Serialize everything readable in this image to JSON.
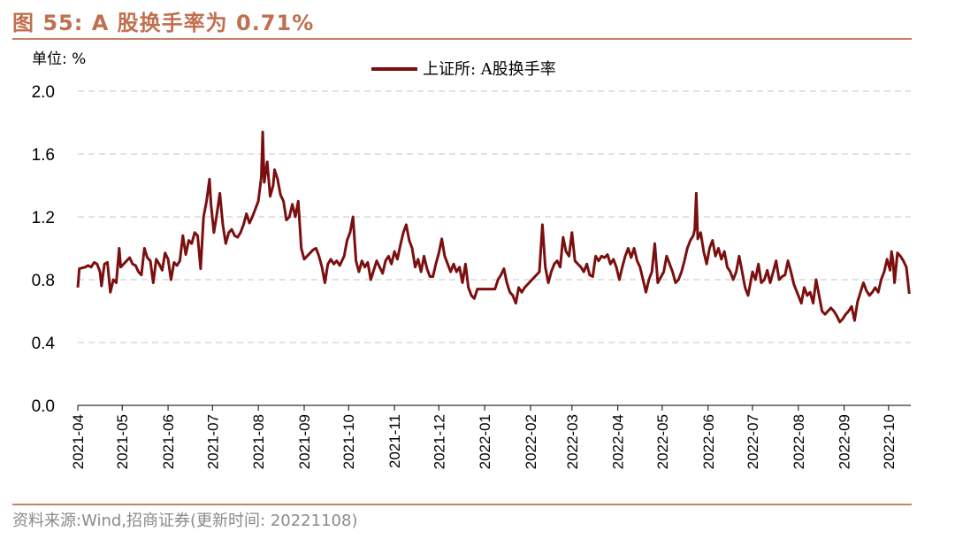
{
  "header": {
    "title": "图 55:  A 股换手率为 0.71%"
  },
  "footer": {
    "source": "资料来源:Wind,招商证券(更新时间: 20221108)"
  },
  "colors": {
    "title": "#c0704f",
    "rule": "#c58266",
    "line": "#7b0f0f",
    "grid": "#d9d9d9",
    "source": "#8a8a8a"
  },
  "chart_data": {
    "type": "line",
    "title": "",
    "unit_label": "单位: %",
    "xlabel": "",
    "ylabel": "",
    "ylim": [
      0.0,
      2.0
    ],
    "yticks": [
      "0.0",
      "0.4",
      "0.8",
      "1.2",
      "1.6",
      "2.0"
    ],
    "xticks": [
      "2021-04",
      "2021-05",
      "2021-06",
      "2021-07",
      "2021-08",
      "2021-09",
      "2021-10",
      "2021-11",
      "2021-12",
      "2022-01",
      "2022-02",
      "2022-03",
      "2022-04",
      "2022-05",
      "2022-06",
      "2022-07",
      "2022-08",
      "2022-09",
      "2022-10"
    ],
    "grid": "horizontal-dashed",
    "legend_position": "top-center",
    "series": [
      {
        "name": "上证所: A股换手率",
        "points": [
          [
            "2021-04-01",
            0.75
          ],
          [
            "2021-04-02",
            0.87
          ],
          [
            "2021-04-06",
            0.88
          ],
          [
            "2021-04-08",
            0.89
          ],
          [
            "2021-04-10",
            0.88
          ],
          [
            "2021-04-12",
            0.91
          ],
          [
            "2021-04-14",
            0.9
          ],
          [
            "2021-04-16",
            0.85
          ],
          [
            "2021-04-17",
            0.76
          ],
          [
            "2021-04-19",
            0.9
          ],
          [
            "2021-04-21",
            0.91
          ],
          [
            "2021-04-23",
            0.72
          ],
          [
            "2021-04-25",
            0.8
          ],
          [
            "2021-04-27",
            0.78
          ],
          [
            "2021-04-29",
            1.0
          ],
          [
            "2021-04-30",
            0.88
          ],
          [
            "2021-05-06",
            0.94
          ],
          [
            "2021-05-08",
            0.9
          ],
          [
            "2021-05-10",
            0.89
          ],
          [
            "2021-05-12",
            0.85
          ],
          [
            "2021-05-14",
            0.83
          ],
          [
            "2021-05-16",
            1.0
          ],
          [
            "2021-05-18",
            0.94
          ],
          [
            "2021-05-20",
            0.92
          ],
          [
            "2021-05-22",
            0.78
          ],
          [
            "2021-05-24",
            0.93
          ],
          [
            "2021-05-26",
            0.9
          ],
          [
            "2021-05-28",
            0.86
          ],
          [
            "2021-05-30",
            0.97
          ],
          [
            "2021-06-01",
            0.93
          ],
          [
            "2021-06-03",
            0.8
          ],
          [
            "2021-06-05",
            0.91
          ],
          [
            "2021-06-07",
            0.89
          ],
          [
            "2021-06-09",
            0.92
          ],
          [
            "2021-06-11",
            1.08
          ],
          [
            "2021-06-13",
            0.96
          ],
          [
            "2021-06-15",
            1.05
          ],
          [
            "2021-06-17",
            1.03
          ],
          [
            "2021-06-19",
            1.1
          ],
          [
            "2021-06-21",
            1.08
          ],
          [
            "2021-06-23",
            0.87
          ],
          [
            "2021-06-25",
            1.2
          ],
          [
            "2021-06-27",
            1.3
          ],
          [
            "2021-06-29",
            1.44
          ],
          [
            "2021-06-30",
            1.28
          ],
          [
            "2021-07-02",
            1.1
          ],
          [
            "2021-07-04",
            1.22
          ],
          [
            "2021-07-06",
            1.35
          ],
          [
            "2021-07-08",
            1.15
          ],
          [
            "2021-07-10",
            1.03
          ],
          [
            "2021-07-12",
            1.1
          ],
          [
            "2021-07-14",
            1.12
          ],
          [
            "2021-07-16",
            1.08
          ],
          [
            "2021-07-18",
            1.07
          ],
          [
            "2021-07-20",
            1.1
          ],
          [
            "2021-07-22",
            1.15
          ],
          [
            "2021-07-24",
            1.22
          ],
          [
            "2021-07-26",
            1.16
          ],
          [
            "2021-07-28",
            1.2
          ],
          [
            "2021-07-30",
            1.25
          ],
          [
            "2021-08-01",
            1.3
          ],
          [
            "2021-08-03",
            1.45
          ],
          [
            "2021-08-04",
            1.74
          ],
          [
            "2021-08-05",
            1.42
          ],
          [
            "2021-08-07",
            1.55
          ],
          [
            "2021-08-09",
            1.33
          ],
          [
            "2021-08-11",
            1.4
          ],
          [
            "2021-08-12",
            1.5
          ],
          [
            "2021-08-14",
            1.44
          ],
          [
            "2021-08-16",
            1.34
          ],
          [
            "2021-08-18",
            1.3
          ],
          [
            "2021-08-20",
            1.18
          ],
          [
            "2021-08-22",
            1.2
          ],
          [
            "2021-08-24",
            1.28
          ],
          [
            "2021-08-26",
            1.2
          ],
          [
            "2021-08-28",
            1.3
          ],
          [
            "2021-08-30",
            1.0
          ],
          [
            "2021-09-01",
            0.93
          ],
          [
            "2021-09-03",
            0.95
          ],
          [
            "2021-09-05",
            0.97
          ],
          [
            "2021-09-07",
            0.99
          ],
          [
            "2021-09-09",
            1.0
          ],
          [
            "2021-09-11",
            0.95
          ],
          [
            "2021-09-13",
            0.88
          ],
          [
            "2021-09-15",
            0.78
          ],
          [
            "2021-09-17",
            0.9
          ],
          [
            "2021-09-19",
            0.93
          ],
          [
            "2021-09-21",
            0.9
          ],
          [
            "2021-09-23",
            0.92
          ],
          [
            "2021-09-25",
            0.89
          ],
          [
            "2021-09-28",
            0.95
          ],
          [
            "2021-09-30",
            1.05
          ],
          [
            "2021-10-02",
            1.1
          ],
          [
            "2021-10-04",
            1.2
          ],
          [
            "2021-10-06",
            0.92
          ],
          [
            "2021-10-08",
            0.85
          ],
          [
            "2021-10-10",
            0.92
          ],
          [
            "2021-10-12",
            0.88
          ],
          [
            "2021-10-14",
            0.91
          ],
          [
            "2021-10-16",
            0.8
          ],
          [
            "2021-10-18",
            0.86
          ],
          [
            "2021-10-20",
            0.92
          ],
          [
            "2021-10-22",
            0.88
          ],
          [
            "2021-10-24",
            0.84
          ],
          [
            "2021-10-26",
            0.92
          ],
          [
            "2021-10-28",
            0.95
          ],
          [
            "2021-10-30",
            0.9
          ],
          [
            "2021-11-01",
            0.98
          ],
          [
            "2021-11-03",
            0.93
          ],
          [
            "2021-11-05",
            1.02
          ],
          [
            "2021-11-07",
            1.1
          ],
          [
            "2021-11-09",
            1.15
          ],
          [
            "2021-11-11",
            1.05
          ],
          [
            "2021-11-13",
            1.0
          ],
          [
            "2021-11-15",
            0.88
          ],
          [
            "2021-11-17",
            0.93
          ],
          [
            "2021-11-19",
            0.85
          ],
          [
            "2021-11-21",
            0.95
          ],
          [
            "2021-11-23",
            0.87
          ],
          [
            "2021-11-25",
            0.82
          ],
          [
            "2021-11-27",
            0.82
          ],
          [
            "2021-11-29",
            0.9
          ],
          [
            "2021-12-01",
            0.97
          ],
          [
            "2021-12-03",
            1.06
          ],
          [
            "2021-12-05",
            0.95
          ],
          [
            "2021-12-07",
            0.9
          ],
          [
            "2021-12-09",
            0.85
          ],
          [
            "2021-12-11",
            0.9
          ],
          [
            "2021-12-13",
            0.85
          ],
          [
            "2021-12-15",
            0.88
          ],
          [
            "2021-12-17",
            0.78
          ],
          [
            "2021-12-19",
            0.9
          ],
          [
            "2021-12-21",
            0.75
          ],
          [
            "2021-12-23",
            0.7
          ],
          [
            "2021-12-25",
            0.68
          ],
          [
            "2021-12-27",
            0.74
          ],
          [
            "2021-12-29",
            0.74
          ],
          [
            "2022-01-04",
            0.74
          ],
          [
            "2022-01-08",
            0.74
          ],
          [
            "2022-01-10",
            0.8
          ],
          [
            "2022-01-12",
            0.83
          ],
          [
            "2022-01-14",
            0.87
          ],
          [
            "2022-01-16",
            0.78
          ],
          [
            "2022-01-18",
            0.72
          ],
          [
            "2022-01-20",
            0.7
          ],
          [
            "2022-01-22",
            0.65
          ],
          [
            "2022-01-24",
            0.75
          ],
          [
            "2022-01-26",
            0.72
          ],
          [
            "2022-01-28",
            0.75
          ],
          [
            "2022-02-07",
            0.85
          ],
          [
            "2022-02-09",
            1.15
          ],
          [
            "2022-02-11",
            0.88
          ],
          [
            "2022-02-13",
            0.78
          ],
          [
            "2022-02-15",
            0.85
          ],
          [
            "2022-02-17",
            0.9
          ],
          [
            "2022-02-19",
            0.92
          ],
          [
            "2022-02-21",
            0.88
          ],
          [
            "2022-02-23",
            1.07
          ],
          [
            "2022-02-25",
            0.98
          ],
          [
            "2022-02-27",
            0.95
          ],
          [
            "2022-03-01",
            1.1
          ],
          [
            "2022-03-03",
            0.92
          ],
          [
            "2022-03-05",
            0.9
          ],
          [
            "2022-03-07",
            0.88
          ],
          [
            "2022-03-09",
            0.85
          ],
          [
            "2022-03-11",
            0.9
          ],
          [
            "2022-03-13",
            0.83
          ],
          [
            "2022-03-15",
            0.82
          ],
          [
            "2022-03-17",
            0.95
          ],
          [
            "2022-03-19",
            0.92
          ],
          [
            "2022-03-21",
            0.95
          ],
          [
            "2022-03-23",
            0.94
          ],
          [
            "2022-03-25",
            0.96
          ],
          [
            "2022-03-27",
            0.9
          ],
          [
            "2022-03-29",
            0.93
          ],
          [
            "2022-03-31",
            0.88
          ],
          [
            "2022-04-02",
            0.8
          ],
          [
            "2022-04-04",
            0.88
          ],
          [
            "2022-04-06",
            0.95
          ],
          [
            "2022-04-08",
            1.0
          ],
          [
            "2022-04-10",
            0.94
          ],
          [
            "2022-04-12",
            1.0
          ],
          [
            "2022-04-14",
            0.92
          ],
          [
            "2022-04-16",
            0.88
          ],
          [
            "2022-04-18",
            0.8
          ],
          [
            "2022-04-20",
            0.72
          ],
          [
            "2022-04-22",
            0.8
          ],
          [
            "2022-04-24",
            0.85
          ],
          [
            "2022-04-26",
            1.03
          ],
          [
            "2022-04-28",
            0.78
          ],
          [
            "2022-05-02",
            0.85
          ],
          [
            "2022-05-04",
            0.95
          ],
          [
            "2022-05-06",
            0.9
          ],
          [
            "2022-05-08",
            0.85
          ],
          [
            "2022-05-10",
            0.78
          ],
          [
            "2022-05-12",
            0.8
          ],
          [
            "2022-05-14",
            0.85
          ],
          [
            "2022-05-16",
            0.92
          ],
          [
            "2022-05-18",
            1.0
          ],
          [
            "2022-05-20",
            1.05
          ],
          [
            "2022-05-22",
            1.08
          ],
          [
            "2022-05-23",
            1.12
          ],
          [
            "2022-05-24",
            1.35
          ],
          [
            "2022-05-25",
            1.06
          ],
          [
            "2022-05-27",
            1.1
          ],
          [
            "2022-05-29",
            0.98
          ],
          [
            "2022-05-31",
            0.9
          ],
          [
            "2022-06-02",
            1.0
          ],
          [
            "2022-06-04",
            1.05
          ],
          [
            "2022-06-06",
            0.95
          ],
          [
            "2022-06-08",
            1.0
          ],
          [
            "2022-06-10",
            0.93
          ],
          [
            "2022-06-12",
            0.98
          ],
          [
            "2022-06-14",
            0.88
          ],
          [
            "2022-06-16",
            0.85
          ],
          [
            "2022-06-18",
            0.8
          ],
          [
            "2022-06-20",
            0.85
          ],
          [
            "2022-06-22",
            0.95
          ],
          [
            "2022-06-24",
            0.85
          ],
          [
            "2022-06-26",
            0.75
          ],
          [
            "2022-06-28",
            0.7
          ],
          [
            "2022-07-01",
            0.85
          ],
          [
            "2022-07-03",
            0.8
          ],
          [
            "2022-07-05",
            0.9
          ],
          [
            "2022-07-07",
            0.78
          ],
          [
            "2022-07-09",
            0.8
          ],
          [
            "2022-07-11",
            0.86
          ],
          [
            "2022-07-13",
            0.78
          ],
          [
            "2022-07-15",
            0.85
          ],
          [
            "2022-07-17",
            0.92
          ],
          [
            "2022-07-19",
            0.8
          ],
          [
            "2022-07-21",
            0.82
          ],
          [
            "2022-07-23",
            0.83
          ],
          [
            "2022-07-25",
            0.92
          ],
          [
            "2022-07-27",
            0.85
          ],
          [
            "2022-07-29",
            0.77
          ],
          [
            "2022-08-01",
            0.7
          ],
          [
            "2022-08-03",
            0.65
          ],
          [
            "2022-08-05",
            0.75
          ],
          [
            "2022-08-07",
            0.7
          ],
          [
            "2022-08-09",
            0.72
          ],
          [
            "2022-08-11",
            0.65
          ],
          [
            "2022-08-13",
            0.8
          ],
          [
            "2022-08-15",
            0.7
          ],
          [
            "2022-08-17",
            0.6
          ],
          [
            "2022-08-19",
            0.58
          ],
          [
            "2022-08-21",
            0.6
          ],
          [
            "2022-08-23",
            0.62
          ],
          [
            "2022-08-25",
            0.6
          ],
          [
            "2022-08-27",
            0.57
          ],
          [
            "2022-08-29",
            0.53
          ],
          [
            "2022-08-31",
            0.55
          ],
          [
            "2022-09-02",
            0.58
          ],
          [
            "2022-09-04",
            0.6
          ],
          [
            "2022-09-06",
            0.63
          ],
          [
            "2022-09-08",
            0.54
          ],
          [
            "2022-09-10",
            0.66
          ],
          [
            "2022-09-12",
            0.72
          ],
          [
            "2022-09-14",
            0.78
          ],
          [
            "2022-09-16",
            0.73
          ],
          [
            "2022-09-18",
            0.7
          ],
          [
            "2022-09-20",
            0.72
          ],
          [
            "2022-09-22",
            0.75
          ],
          [
            "2022-09-24",
            0.72
          ],
          [
            "2022-09-26",
            0.8
          ],
          [
            "2022-09-28",
            0.85
          ],
          [
            "2022-09-30",
            0.93
          ],
          [
            "2022-10-02",
            0.86
          ],
          [
            "2022-10-03",
            0.98
          ],
          [
            "2022-10-04",
            0.92
          ],
          [
            "2022-10-05",
            0.78
          ],
          [
            "2022-10-07",
            0.97
          ],
          [
            "2022-10-09",
            0.95
          ],
          [
            "2022-10-11",
            0.92
          ],
          [
            "2022-10-13",
            0.88
          ],
          [
            "2022-10-15",
            0.71
          ]
        ]
      }
    ]
  }
}
